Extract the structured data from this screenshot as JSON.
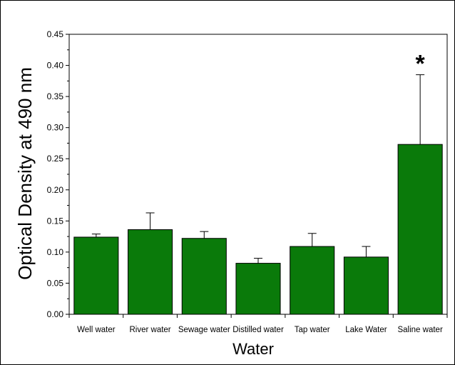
{
  "chart_data": {
    "type": "bar",
    "categories": [
      "Well water",
      "River water",
      "Sewage water",
      "Distilled water",
      "Tap water",
      "Lake Water",
      "Saline water"
    ],
    "values": [
      0.124,
      0.136,
      0.122,
      0.082,
      0.109,
      0.092,
      0.273
    ],
    "error_upper": [
      0.005,
      0.027,
      0.011,
      0.008,
      0.021,
      0.017,
      0.112
    ],
    "xlabel": "Water",
    "ylabel": "Optical Density at 490 nm",
    "ylim": [
      0,
      0.45
    ],
    "yticks": [
      "0.00",
      "0.05",
      "0.10",
      "0.15",
      "0.20",
      "0.25",
      "0.30",
      "0.35",
      "0.40",
      "0.45"
    ],
    "bar_color": "#0a7a0a",
    "annotation": {
      "text": "*",
      "category": "Saline water"
    },
    "grid": false,
    "legend": "none"
  }
}
